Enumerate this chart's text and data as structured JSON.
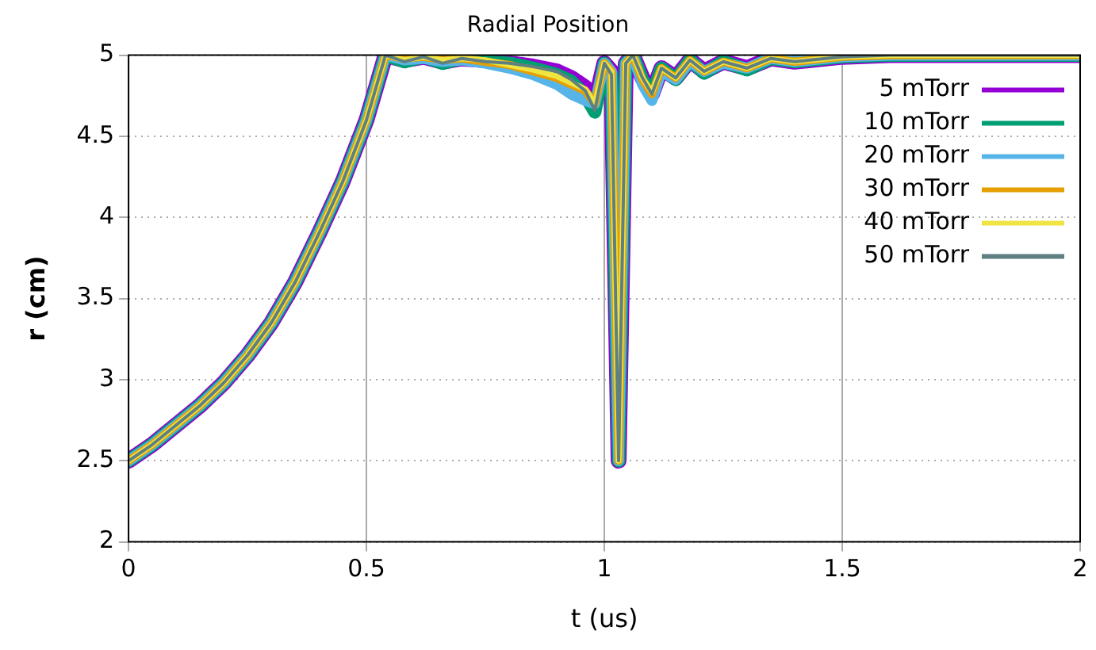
{
  "chart_data": {
    "type": "line",
    "title": "Radial Position",
    "xlabel": "t (us)",
    "ylabel": "r (cm)",
    "x": [
      0,
      0.05,
      0.1,
      0.15,
      0.2,
      0.25,
      0.3,
      0.35,
      0.4,
      0.45,
      0.5,
      0.54,
      0.58,
      0.62,
      0.66,
      0.7,
      0.75,
      0.8,
      0.85,
      0.9,
      0.93,
      0.96,
      0.98,
      1.0,
      1.015,
      1.03,
      1.045,
      1.06,
      1.08,
      1.1,
      1.12,
      1.15,
      1.18,
      1.21,
      1.25,
      1.3,
      1.35,
      1.4,
      1.5,
      1.6,
      1.7,
      1.8,
      1.9,
      2.0
    ],
    "series": [
      {
        "name": "5 mTorr",
        "color": "#9400d3",
        "values": [
          2.5,
          2.6,
          2.72,
          2.84,
          2.98,
          3.15,
          3.35,
          3.6,
          3.9,
          4.22,
          4.6,
          5,
          4.97,
          4.99,
          4.96,
          4.98,
          4.97,
          4.95,
          4.93,
          4.9,
          4.86,
          4.8,
          4.7,
          4.95,
          4.9,
          2.5,
          4.95,
          5,
          4.86,
          4.76,
          4.92,
          4.86,
          4.97,
          4.9,
          4.96,
          4.92,
          4.98,
          4.96,
          4.99,
          5,
          5,
          5,
          5,
          5
        ]
      },
      {
        "name": "10 mTorr",
        "color": "#009e73",
        "values": [
          2.5,
          2.6,
          2.72,
          2.84,
          2.98,
          3.15,
          3.35,
          3.6,
          3.9,
          4.22,
          4.6,
          5,
          4.96,
          4.99,
          4.95,
          4.98,
          4.96,
          4.95,
          4.92,
          4.88,
          4.84,
          4.75,
          4.65,
          4.95,
          4.88,
          2.5,
          4.95,
          5,
          4.85,
          4.75,
          4.92,
          4.85,
          4.97,
          4.89,
          4.96,
          4.91,
          4.98,
          4.96,
          4.99,
          5,
          5,
          5,
          5,
          5
        ]
      },
      {
        "name": "20 mTorr",
        "color": "#56b4e9",
        "values": [
          2.5,
          2.6,
          2.72,
          2.84,
          2.98,
          3.15,
          3.35,
          3.6,
          3.9,
          4.22,
          4.6,
          5,
          4.97,
          4.98,
          4.96,
          4.97,
          4.95,
          4.92,
          4.88,
          4.82,
          4.76,
          4.72,
          4.7,
          4.95,
          4.9,
          2.5,
          4.95,
          5,
          4.82,
          4.72,
          4.9,
          4.85,
          4.96,
          4.9,
          4.95,
          4.92,
          4.98,
          4.96,
          4.99,
          5,
          5,
          5,
          5,
          5
        ]
      },
      {
        "name": "30 mTorr",
        "color": "#e69f00",
        "values": [
          2.5,
          2.6,
          2.72,
          2.84,
          2.98,
          3.15,
          3.35,
          3.6,
          3.9,
          4.22,
          4.6,
          5,
          4.98,
          4.99,
          4.97,
          4.98,
          4.96,
          4.94,
          4.9,
          4.86,
          4.82,
          4.78,
          4.7,
          4.95,
          4.9,
          2.5,
          4.95,
          5,
          4.85,
          4.76,
          4.92,
          4.86,
          4.97,
          4.9,
          4.96,
          4.92,
          4.98,
          4.96,
          4.99,
          5,
          5,
          5,
          5,
          5
        ]
      },
      {
        "name": "40 mTorr",
        "color": "#f0e442",
        "values": [
          2.5,
          2.6,
          2.72,
          2.84,
          2.98,
          3.15,
          3.35,
          3.6,
          3.9,
          4.22,
          4.6,
          5,
          4.97,
          4.99,
          4.97,
          4.98,
          4.97,
          4.94,
          4.91,
          4.87,
          4.83,
          4.79,
          4.7,
          4.95,
          4.9,
          2.5,
          4.95,
          5,
          4.86,
          4.77,
          4.92,
          4.86,
          4.97,
          4.9,
          4.96,
          4.92,
          4.98,
          4.96,
          4.99,
          5,
          5,
          5,
          5,
          5
        ]
      },
      {
        "name": "50 mTorr",
        "color": "#5f7f80",
        "values": [
          2.5,
          2.6,
          2.72,
          2.84,
          2.98,
          3.15,
          3.35,
          3.6,
          3.9,
          4.22,
          4.6,
          5,
          4.96,
          4.99,
          4.95,
          4.98,
          4.96,
          4.95,
          4.93,
          4.9,
          4.85,
          4.78,
          4.66,
          4.95,
          4.88,
          2.5,
          4.95,
          5,
          4.86,
          4.76,
          4.92,
          4.86,
          4.97,
          4.9,
          4.96,
          4.92,
          4.98,
          4.96,
          4.99,
          5,
          5,
          5,
          5,
          5
        ]
      }
    ],
    "xlim": [
      0,
      2
    ],
    "xticks": [
      0,
      0.5,
      1,
      1.5,
      2
    ],
    "ylim": [
      2,
      5
    ],
    "yticks": [
      2,
      2.5,
      3,
      3.5,
      4,
      4.5,
      5
    ],
    "grid": true,
    "legend": "top right",
    "marker": "none",
    "line_style": "solid"
  }
}
